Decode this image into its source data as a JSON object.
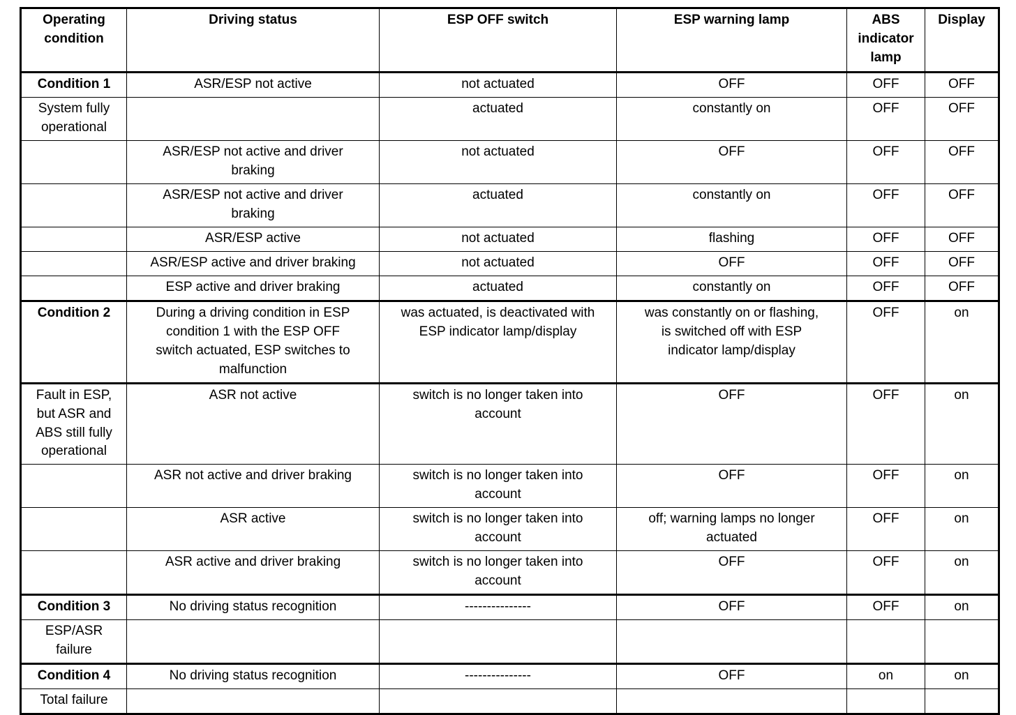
{
  "table": {
    "name": "esp-operating-conditions-table",
    "headers": [
      "Operating\ncondition",
      "Driving status",
      "ESP OFF switch",
      "ESP warning lamp",
      "ABS\nindicator\nlamp",
      "Display"
    ],
    "rows": [
      {
        "section_start": true,
        "bold_first": true,
        "cells": [
          "Condition 1",
          "ASR/ESP not active",
          "not actuated",
          "OFF",
          "OFF",
          "OFF"
        ]
      },
      {
        "section_start": false,
        "bold_first": false,
        "cells": [
          "System fully\noperational",
          "",
          "actuated",
          "constantly on",
          "OFF",
          "OFF"
        ]
      },
      {
        "section_start": false,
        "bold_first": false,
        "cells": [
          "",
          "ASR/ESP not active and driver\nbraking",
          "not actuated",
          "OFF",
          "OFF",
          "OFF"
        ]
      },
      {
        "section_start": false,
        "bold_first": false,
        "cells": [
          "",
          "ASR/ESP not active and driver\nbraking",
          "actuated",
          "constantly on",
          "OFF",
          "OFF"
        ]
      },
      {
        "section_start": false,
        "bold_first": false,
        "cells": [
          "",
          "ASR/ESP active",
          "not actuated",
          "flashing",
          "OFF",
          "OFF"
        ]
      },
      {
        "section_start": false,
        "bold_first": false,
        "cells": [
          "",
          "ASR/ESP active and driver braking",
          "not actuated",
          "OFF",
          "OFF",
          "OFF"
        ]
      },
      {
        "section_start": false,
        "bold_first": false,
        "cells": [
          "",
          "ESP active and driver braking",
          "actuated",
          "constantly on",
          "OFF",
          "OFF"
        ]
      },
      {
        "section_start": true,
        "bold_first": true,
        "cells": [
          "Condition 2",
          "During a driving condition in ESP\ncondition 1 with the ESP OFF\nswitch actuated, ESP switches to\nmalfunction",
          "was actuated, is deactivated with\nESP indicator lamp/display",
          "was constantly on or flashing,\nis switched off with ESP\nindicator lamp/display",
          "OFF",
          "on"
        ]
      },
      {
        "section_start": true,
        "bold_first": false,
        "cells": [
          "Fault in ESP,\nbut ASR and\nABS still fully\noperational",
          "ASR not active",
          "switch is no longer taken into\naccount",
          "OFF",
          "OFF",
          "on"
        ]
      },
      {
        "section_start": false,
        "bold_first": false,
        "cells": [
          "",
          "ASR not active and driver braking",
          "switch is no longer taken into\naccount",
          "OFF",
          "OFF",
          "on"
        ]
      },
      {
        "section_start": false,
        "bold_first": false,
        "cells": [
          "",
          "ASR active",
          "switch is no longer taken into\naccount",
          "off; warning lamps no longer\nactuated",
          "OFF",
          "on"
        ]
      },
      {
        "section_start": false,
        "bold_first": false,
        "cells": [
          "",
          "ASR active and driver braking",
          "switch is no longer taken into\naccount",
          "OFF",
          "OFF",
          "on"
        ]
      },
      {
        "section_start": true,
        "bold_first": true,
        "cells": [
          "Condition 3",
          "No driving status recognition",
          "---------------",
          "OFF",
          "OFF",
          "on"
        ]
      },
      {
        "section_start": false,
        "bold_first": false,
        "cells": [
          "ESP/ASR\nfailure",
          "",
          "",
          "",
          "",
          ""
        ]
      },
      {
        "section_start": true,
        "bold_first": true,
        "cells": [
          "Condition 4",
          "No driving status recognition",
          "---------------",
          "OFF",
          "on",
          "on"
        ]
      },
      {
        "section_start": false,
        "bold_first": false,
        "cells": [
          "Total failure",
          "",
          "",
          "",
          "",
          ""
        ]
      }
    ]
  },
  "colors": {
    "border": "#000000",
    "text": "#000000",
    "background": "#ffffff"
  }
}
